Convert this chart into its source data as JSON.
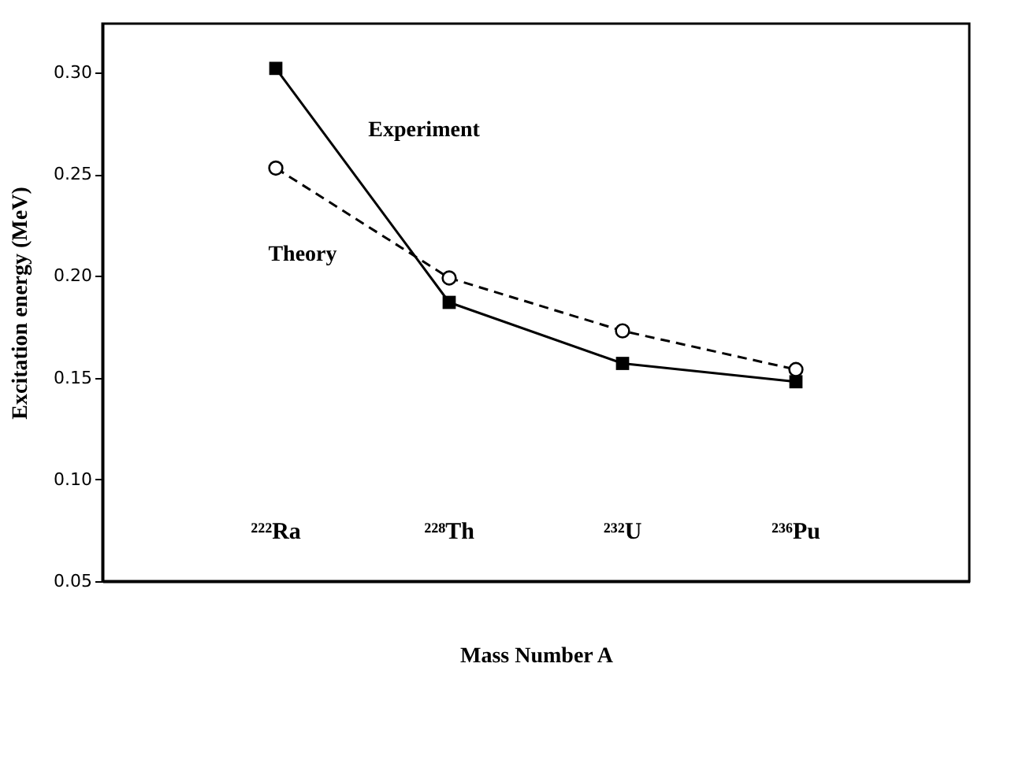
{
  "chart_data": {
    "type": "line",
    "xlabel": "Mass Number A",
    "ylabel": "Excitation energy (MeV)",
    "categories": [
      "²²²Ra",
      "²²⁸Th",
      "²³²U",
      "²³⁶Pu"
    ],
    "series": [
      {
        "name": "Experiment",
        "color": "#000000",
        "values": [
          0.302,
          0.187,
          0.157,
          0.148
        ],
        "marker": "square",
        "line_style": "solid"
      },
      {
        "name": "Theory",
        "color": "#000000",
        "values": [
          0.253,
          0.199,
          0.173,
          0.154
        ],
        "marker": "circle",
        "line_style": "dashed"
      }
    ],
    "ylim": [
      0.05,
      0.324
    ],
    "yticks": [
      0.05,
      {
        "value": 0.1,
        "label": "0.10"
      },
      0.15,
      {
        "value": 0.2,
        "label": "0.20"
      },
      0.25,
      {
        "value": 0.3,
        "label": "0.30"
      }
    ],
    "grid": false
  }
}
